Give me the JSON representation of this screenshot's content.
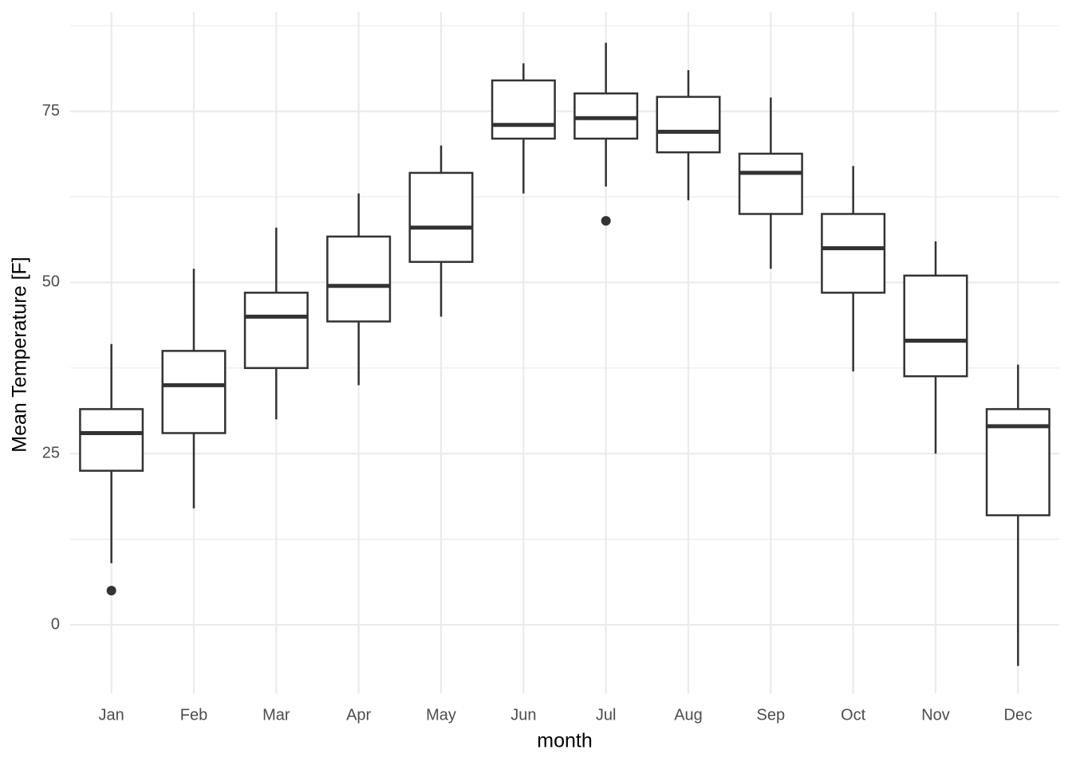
{
  "chart_data": {
    "type": "boxplot",
    "x_label": "month",
    "y_label": "Mean Temperature [F]",
    "categories": [
      "Jan",
      "Feb",
      "Mar",
      "Apr",
      "May",
      "Jun",
      "Jul",
      "Aug",
      "Sep",
      "Oct",
      "Nov",
      "Dec"
    ],
    "whisker_low": [
      9,
      17,
      30,
      35,
      45,
      63,
      64,
      62,
      52,
      37,
      25,
      -6
    ],
    "q1": [
      22.5,
      28,
      37.5,
      44.3,
      53,
      71,
      71,
      69,
      60,
      48.5,
      36.3,
      16
    ],
    "median": [
      28,
      35,
      45,
      49.5,
      58,
      73,
      74,
      72,
      66,
      55,
      41.5,
      29
    ],
    "q3": [
      31.5,
      40,
      48.5,
      56.7,
      66,
      79.5,
      77.6,
      77.1,
      68.8,
      60,
      51,
      31.5
    ],
    "whisker_high": [
      41,
      52,
      58,
      63,
      70,
      82,
      85,
      81,
      77,
      67,
      56,
      38
    ],
    "outliers": [
      [
        5
      ],
      [],
      [],
      [],
      [],
      [],
      [
        59
      ],
      [],
      [],
      [],
      [],
      []
    ],
    "color": "#333333",
    "ylim": [
      -10,
      89.5
    ],
    "yticks": [
      0,
      25,
      50,
      75
    ],
    "minor_yticks": [
      12.5,
      37.5,
      62.5,
      87.5
    ],
    "grid": true
  }
}
